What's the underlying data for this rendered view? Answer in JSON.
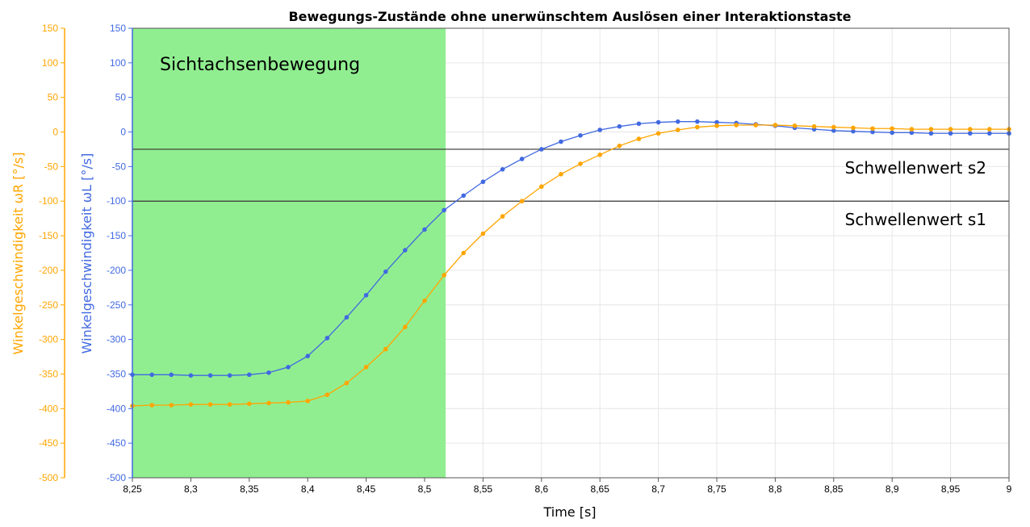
{
  "chart_data": {
    "type": "line",
    "title": "Bewegungs-Zustände ohne unerwünschtem Auslösen einer Interaktionstaste",
    "xlabel": "Time [s]",
    "ylabel_left": "Winkelgeschwindigkeit ωL [°/s]",
    "ylabel_right": "Winkelgeschwindigkeit ωR [°/s]",
    "xlim": [
      8.25,
      9.0
    ],
    "ylim": [
      -500,
      150
    ],
    "x_ticks": [
      8.25,
      8.3,
      8.35,
      8.4,
      8.45,
      8.5,
      8.55,
      8.6,
      8.65,
      8.7,
      8.75,
      8.8,
      8.85,
      8.9,
      8.95,
      9.0
    ],
    "x_tick_labels": [
      "8,25",
      "8,3",
      "8,35",
      "8,4",
      "8,45",
      "8,5",
      "8,55",
      "8,6",
      "8,65",
      "8,7",
      "8,75",
      "8,8",
      "8,85",
      "8,9",
      "8,95",
      "9"
    ],
    "y_ticks": [
      150,
      100,
      50,
      0,
      -50,
      -100,
      -150,
      -200,
      -250,
      -300,
      -350,
      -400,
      -450,
      -500
    ],
    "grid": true,
    "colors": {
      "left": "#4169E1",
      "right": "#FFA500",
      "region": "#90EE90",
      "threshold": "#333333"
    },
    "region": {
      "label": "Sichtachsenbewegung",
      "x_start": 8.25,
      "x_end": 8.518
    },
    "thresholds": [
      {
        "label": "Schwellenwert s2",
        "y": -25
      },
      {
        "label": "Schwellenwert s1",
        "y": -100
      }
    ],
    "x": [
      8.25,
      8.2667,
      8.2833,
      8.3,
      8.3167,
      8.3333,
      8.35,
      8.3667,
      8.3833,
      8.4,
      8.4167,
      8.4333,
      8.45,
      8.4667,
      8.4833,
      8.5,
      8.5167,
      8.5333,
      8.55,
      8.5667,
      8.5833,
      8.6,
      8.6167,
      8.6333,
      8.65,
      8.6667,
      8.6833,
      8.7,
      8.7167,
      8.7333,
      8.75,
      8.7667,
      8.7833,
      8.8,
      8.8167,
      8.8333,
      8.85,
      8.8667,
      8.8833,
      8.9,
      8.9167,
      8.9333,
      8.95,
      8.9667,
      8.9833,
      9.0
    ],
    "series": [
      {
        "axis": "left",
        "values": [
          -351,
          -351,
          -351,
          -352,
          -352,
          -352,
          -351,
          -348,
          -340,
          -324,
          -298,
          -268,
          -236,
          -202,
          -171,
          -141,
          -113,
          -92,
          -72,
          -54,
          -39,
          -25,
          -14,
          -5,
          3,
          8,
          12,
          14,
          15,
          15,
          14,
          13,
          11,
          9,
          6,
          4,
          2,
          1,
          0,
          -1,
          -1,
          -2,
          -2,
          -2,
          -2,
          -2
        ]
      },
      {
        "axis": "right",
        "values": [
          -396,
          -395,
          -395,
          -394,
          -394,
          -394,
          -393,
          -392,
          -391,
          -389,
          -380,
          -363,
          -340,
          -314,
          -282,
          -244,
          -207,
          -175,
          -147,
          -122,
          -100,
          -79,
          -61,
          -46,
          -33,
          -20,
          -10,
          -2,
          3,
          7,
          9,
          10,
          10,
          10,
          9,
          8,
          7,
          6,
          5,
          5,
          4,
          4,
          4,
          4,
          4,
          4
        ]
      }
    ]
  }
}
